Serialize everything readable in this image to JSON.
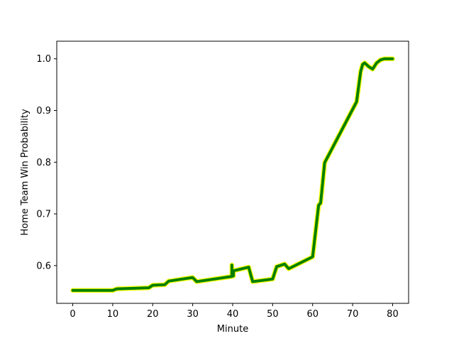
{
  "chart_data": {
    "type": "line",
    "title": "",
    "xlabel": "Minute",
    "ylabel": "Home Team Win Probability",
    "xlim": [
      -4,
      84
    ],
    "ylim": [
      0.527,
      1.034
    ],
    "xticks": [
      0,
      10,
      20,
      30,
      40,
      50,
      60,
      70,
      80
    ],
    "yticks": [
      0.6,
      0.7,
      0.8,
      0.9,
      1.0
    ],
    "xtick_labels": [
      "0",
      "10",
      "20",
      "30",
      "40",
      "50",
      "60",
      "70",
      "80"
    ],
    "ytick_labels": [
      "0.6",
      "0.7",
      "0.8",
      "0.9",
      "1.0"
    ],
    "grid": false,
    "series": [
      {
        "color": "#008000",
        "edge_color": "#ffff00",
        "x": [
          0,
          10,
          11,
          19,
          20,
          23,
          24,
          30,
          31,
          39.8,
          39.8,
          39.8,
          40.2,
          40.2,
          44,
          45,
          50,
          51,
          53,
          54,
          60,
          61.5,
          62,
          63,
          71,
          72,
          72.5,
          73,
          74,
          75,
          76,
          77,
          78,
          80
        ],
        "y": [
          0.552,
          0.552,
          0.555,
          0.557,
          0.562,
          0.563,
          0.57,
          0.577,
          0.569,
          0.579,
          0.601,
          0.581,
          0.58,
          0.59,
          0.597,
          0.569,
          0.574,
          0.598,
          0.603,
          0.594,
          0.617,
          0.717,
          0.721,
          0.799,
          0.917,
          0.975,
          0.989,
          0.992,
          0.985,
          0.98,
          0.992,
          0.998,
          1.0,
          1.0
        ]
      }
    ]
  }
}
